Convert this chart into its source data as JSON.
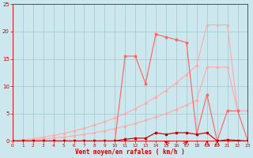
{
  "xlabel": "Vent moyen/en rafales ( km/h )",
  "bg_color": "#cce8ee",
  "grid_color": "#a0c8cc",
  "dark_red": "#cc0000",
  "mid_red": "#ff6666",
  "light_red": "#ffaaaa",
  "xlim": [
    0,
    23
  ],
  "ylim": [
    0,
    25
  ],
  "xticks": [
    0,
    1,
    2,
    3,
    4,
    5,
    6,
    7,
    8,
    9,
    10,
    11,
    12,
    13,
    14,
    15,
    16,
    17,
    18,
    19,
    20,
    21,
    22,
    23
  ],
  "yticks": [
    0,
    5,
    10,
    15,
    20,
    25
  ],
  "x": [
    0,
    1,
    2,
    3,
    4,
    5,
    6,
    7,
    8,
    9,
    10,
    11,
    12,
    13,
    14,
    15,
    16,
    17,
    18,
    19,
    20,
    21,
    22,
    23
  ],
  "gust_line": [
    0,
    0,
    0,
    0,
    0,
    0,
    0,
    0,
    0,
    0,
    0,
    15.5,
    15.5,
    10.5,
    19.5,
    19.0,
    18.5,
    18.0,
    1.2,
    8.5,
    0,
    5.5,
    5.5,
    0
  ],
  "wind_line": [
    0,
    0,
    0,
    0,
    0,
    0,
    0,
    0,
    0,
    0,
    0,
    0.3,
    0.5,
    0.5,
    1.5,
    1.2,
    1.5,
    1.5,
    1.2,
    1.5,
    0,
    0.2,
    0.1,
    0
  ],
  "env_top": [
    0,
    0.2,
    0.4,
    0.7,
    1.0,
    1.4,
    1.8,
    2.3,
    2.9,
    3.5,
    4.2,
    5.0,
    5.9,
    6.9,
    8.0,
    9.2,
    10.6,
    12.1,
    13.8,
    21.2,
    21.2,
    21.2,
    5.5,
    5.5
  ],
  "env_bot": [
    0,
    0.1,
    0.2,
    0.35,
    0.5,
    0.7,
    0.95,
    1.2,
    1.5,
    1.85,
    2.25,
    2.7,
    3.2,
    3.75,
    4.35,
    5.0,
    5.75,
    6.55,
    7.45,
    13.5,
    13.5,
    13.5,
    5.5,
    5.5
  ]
}
